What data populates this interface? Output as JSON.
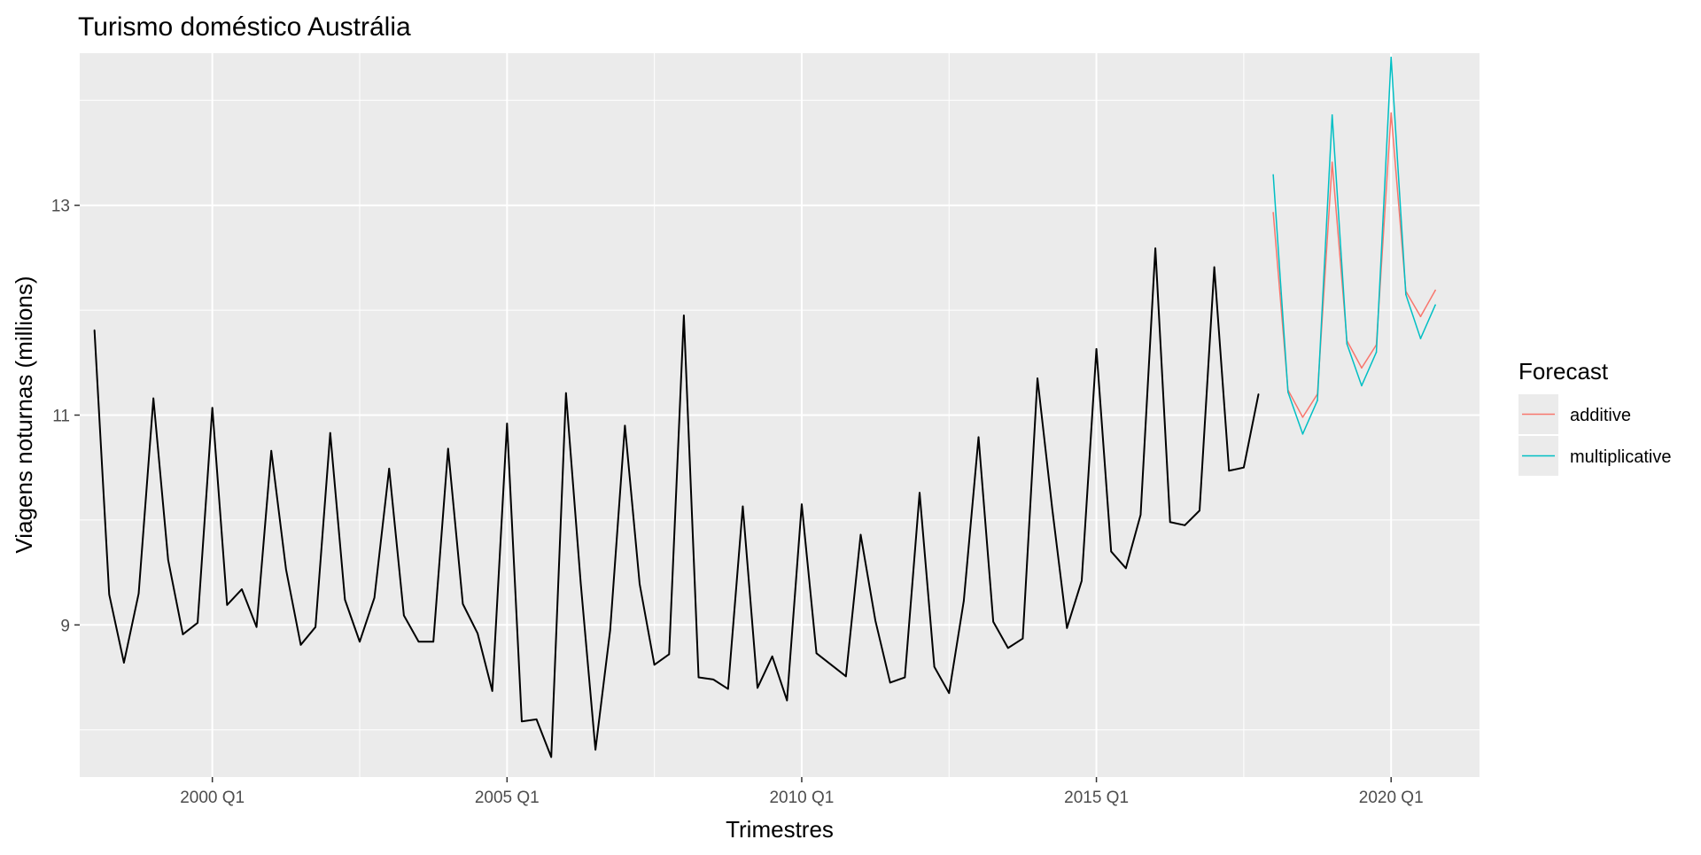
{
  "chart_data": {
    "type": "line",
    "title": "Turismo doméstico Austrália",
    "xlabel": "Trimestres",
    "ylabel": "Viagens noturnas (millions)",
    "x_ticks": [
      "2000 Q1",
      "2005 Q1",
      "2010 Q1",
      "2015 Q1",
      "2020 Q1"
    ],
    "y_ticks": [
      "9",
      "11",
      "13"
    ],
    "xlim": [
      1997.75,
      2021.5
    ],
    "ylim": [
      7.55,
      14.45
    ],
    "grid": true,
    "legend": {
      "title": "Forecast",
      "placement": "right",
      "entries": [
        "additive",
        "multiplicative"
      ]
    },
    "colors": {
      "observed": "#000000",
      "additive": "#f8766d",
      "multiplicative": "#00bfc4",
      "panel_background": "#ebebeb",
      "grid": "#ffffff"
    },
    "series": [
      {
        "key": "observed",
        "start": "1998 Q1",
        "values": [
          11.81,
          9.29,
          8.64,
          9.3,
          11.16,
          9.62,
          8.91,
          9.02,
          11.07,
          9.19,
          9.34,
          8.98,
          10.66,
          9.53,
          8.81,
          8.98,
          10.83,
          9.24,
          8.84,
          9.26,
          10.49,
          9.09,
          8.84,
          8.84,
          10.68,
          9.2,
          8.92,
          8.37,
          10.92,
          8.08,
          8.1,
          7.74,
          11.21,
          9.4,
          7.81,
          8.95,
          10.9,
          9.39,
          8.62,
          8.72,
          11.95,
          8.5,
          8.48,
          8.39,
          10.13,
          8.4,
          8.7,
          8.28,
          10.15,
          8.73,
          8.62,
          8.51,
          9.86,
          9.04,
          8.45,
          8.5,
          10.26,
          8.6,
          8.35,
          9.23,
          10.79,
          9.03,
          8.78,
          8.87,
          11.35,
          10.11,
          8.97,
          9.42,
          11.63,
          9.7,
          9.54,
          10.05,
          12.59,
          9.98,
          9.95,
          10.09,
          12.41,
          10.47,
          10.5,
          11.2
        ]
      },
      {
        "key": "additive",
        "name": "additive",
        "start": "2018 Q1",
        "values": [
          12.93,
          11.24,
          10.98,
          11.2,
          13.41,
          11.71,
          11.45,
          11.67,
          13.88,
          12.18,
          11.94,
          12.19
        ]
      },
      {
        "key": "multiplicative",
        "name": "multiplicative",
        "start": "2018 Q1",
        "values": [
          13.29,
          11.22,
          10.82,
          11.14,
          13.86,
          11.68,
          11.28,
          11.6,
          14.41,
          12.15,
          11.73,
          12.05
        ]
      }
    ]
  }
}
